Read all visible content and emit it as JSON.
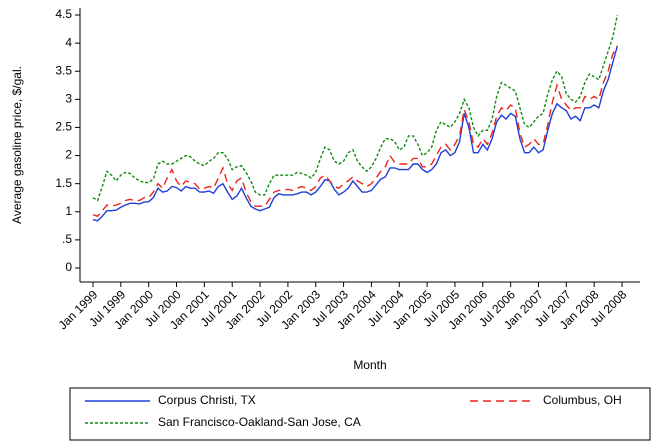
{
  "chart_data": {
    "type": "line",
    "x_label": "Month",
    "y_label": "Average gasoline price, $/gal.",
    "categories": [
      "Jan 1999",
      null,
      null,
      null,
      null,
      null,
      "Jul 1999",
      null,
      null,
      null,
      null,
      null,
      "Jan 2000",
      null,
      null,
      null,
      null,
      null,
      "Jul 2000",
      null,
      null,
      null,
      null,
      null,
      "Jan 2001",
      null,
      null,
      null,
      null,
      null,
      "Jul 2001",
      null,
      null,
      null,
      null,
      null,
      "Jan 2002",
      null,
      null,
      null,
      null,
      null,
      "Jul 2002",
      null,
      null,
      null,
      null,
      null,
      "Jan 2003",
      null,
      null,
      null,
      null,
      null,
      "Jul 2003",
      null,
      null,
      null,
      null,
      null,
      "Jan 2004",
      null,
      null,
      null,
      null,
      null,
      "Jul 2004",
      null,
      null,
      null,
      null,
      null,
      "Jan 2005",
      null,
      null,
      null,
      null,
      null,
      "Jul 2005",
      null,
      null,
      null,
      null,
      null,
      "Jan 2006",
      null,
      null,
      null,
      null,
      null,
      "Jul 2006",
      null,
      null,
      null,
      null,
      null,
      "Jan 2007",
      null,
      null,
      null,
      null,
      null,
      "Jul 2007",
      null,
      null,
      null,
      null,
      null,
      "Jan 2008",
      null,
      null,
      null,
      null,
      null,
      "Jul 2008"
    ],
    "series": [
      {
        "name": "Corpus Christi, TX",
        "color": "#1f3fd8",
        "dash": "none",
        "values": [
          0.86,
          0.84,
          0.92,
          1.02,
          1.02,
          1.03,
          1.08,
          1.12,
          1.15,
          1.15,
          1.14,
          1.17,
          1.18,
          1.25,
          1.42,
          1.35,
          1.37,
          1.45,
          1.43,
          1.37,
          1.45,
          1.42,
          1.42,
          1.35,
          1.35,
          1.37,
          1.33,
          1.45,
          1.5,
          1.35,
          1.22,
          1.28,
          1.42,
          1.25,
          1.1,
          1.05,
          1.02,
          1.05,
          1.08,
          1.25,
          1.32,
          1.3,
          1.3,
          1.3,
          1.32,
          1.35,
          1.35,
          1.3,
          1.35,
          1.45,
          1.57,
          1.55,
          1.4,
          1.3,
          1.35,
          1.42,
          1.55,
          1.45,
          1.35,
          1.35,
          1.38,
          1.48,
          1.58,
          1.62,
          1.78,
          1.78,
          1.75,
          1.75,
          1.75,
          1.85,
          1.85,
          1.75,
          1.7,
          1.75,
          1.85,
          2.05,
          2.1,
          2.0,
          2.05,
          2.25,
          2.75,
          2.5,
          2.05,
          2.05,
          2.2,
          2.1,
          2.3,
          2.6,
          2.72,
          2.65,
          2.75,
          2.7,
          2.3,
          2.05,
          2.05,
          2.15,
          2.05,
          2.1,
          2.45,
          2.75,
          2.92,
          2.85,
          2.8,
          2.65,
          2.7,
          2.62,
          2.85,
          2.85,
          2.9,
          2.85,
          3.15,
          3.35,
          3.65,
          3.95,
          null
        ]
      },
      {
        "name": "Columbus, OH",
        "color": "#e8261c",
        "dash": "8 5",
        "values": [
          0.95,
          0.92,
          1.02,
          1.12,
          1.1,
          1.12,
          1.15,
          1.2,
          1.22,
          1.2,
          1.2,
          1.25,
          1.25,
          1.35,
          1.5,
          1.42,
          1.6,
          1.75,
          1.55,
          1.45,
          1.55,
          1.52,
          1.5,
          1.4,
          1.42,
          1.45,
          1.42,
          1.6,
          1.78,
          1.5,
          1.38,
          1.55,
          1.6,
          1.35,
          1.18,
          1.1,
          1.1,
          1.1,
          1.22,
          1.35,
          1.38,
          1.38,
          1.4,
          1.38,
          1.42,
          1.45,
          1.42,
          1.38,
          1.45,
          1.6,
          1.65,
          1.55,
          1.45,
          1.42,
          1.5,
          1.55,
          1.62,
          1.55,
          1.5,
          1.45,
          1.5,
          1.6,
          1.72,
          1.8,
          2.0,
          1.88,
          1.85,
          1.85,
          1.85,
          1.95,
          1.95,
          1.8,
          1.8,
          1.85,
          2.0,
          2.15,
          2.2,
          2.1,
          2.2,
          2.35,
          2.82,
          2.6,
          2.2,
          2.15,
          2.3,
          2.2,
          2.4,
          2.7,
          2.85,
          2.8,
          2.9,
          2.85,
          2.4,
          2.15,
          2.2,
          2.3,
          2.2,
          2.2,
          2.55,
          2.95,
          3.25,
          3.0,
          2.9,
          2.8,
          2.85,
          2.85,
          3.05,
          3.0,
          3.05,
          3.0,
          3.3,
          3.5,
          3.8,
          3.95,
          null
        ]
      },
      {
        "name": "San Francisco-Oakland-San Jose, CA",
        "color": "#108a10",
        "dash": "3 2",
        "values": [
          1.25,
          1.2,
          1.45,
          1.72,
          1.65,
          1.55,
          1.65,
          1.7,
          1.68,
          1.6,
          1.55,
          1.52,
          1.52,
          1.58,
          1.85,
          1.9,
          1.85,
          1.85,
          1.9,
          1.95,
          2.0,
          1.98,
          1.9,
          1.85,
          1.82,
          1.9,
          1.95,
          2.05,
          2.05,
          1.95,
          1.75,
          1.8,
          1.82,
          1.7,
          1.55,
          1.35,
          1.3,
          1.3,
          1.5,
          1.65,
          1.65,
          1.65,
          1.65,
          1.65,
          1.7,
          1.68,
          1.65,
          1.6,
          1.7,
          1.95,
          2.15,
          2.1,
          1.9,
          1.85,
          1.9,
          2.05,
          2.1,
          1.9,
          1.8,
          1.72,
          1.8,
          1.95,
          2.15,
          2.3,
          2.3,
          2.25,
          2.1,
          2.15,
          2.35,
          2.35,
          2.2,
          2.0,
          2.05,
          2.15,
          2.45,
          2.6,
          2.55,
          2.5,
          2.6,
          2.75,
          3.0,
          2.85,
          2.5,
          2.35,
          2.45,
          2.45,
          2.65,
          3.05,
          3.3,
          3.25,
          3.2,
          3.15,
          2.85,
          2.55,
          2.5,
          2.6,
          2.7,
          2.75,
          3.1,
          3.35,
          3.5,
          3.4,
          3.1,
          3.0,
          2.95,
          3.05,
          3.3,
          3.45,
          3.4,
          3.35,
          3.6,
          3.85,
          4.1,
          4.5,
          null
        ]
      }
    ],
    "ylim": [
      -0.25,
      4.75
    ],
    "yticks": [
      0,
      {
        "value": 0.5,
        "label": ".5"
      },
      1,
      1.5,
      2,
      2.5,
      3,
      3.5,
      4,
      4.5
    ],
    "grid": false,
    "legend": "bottom"
  }
}
